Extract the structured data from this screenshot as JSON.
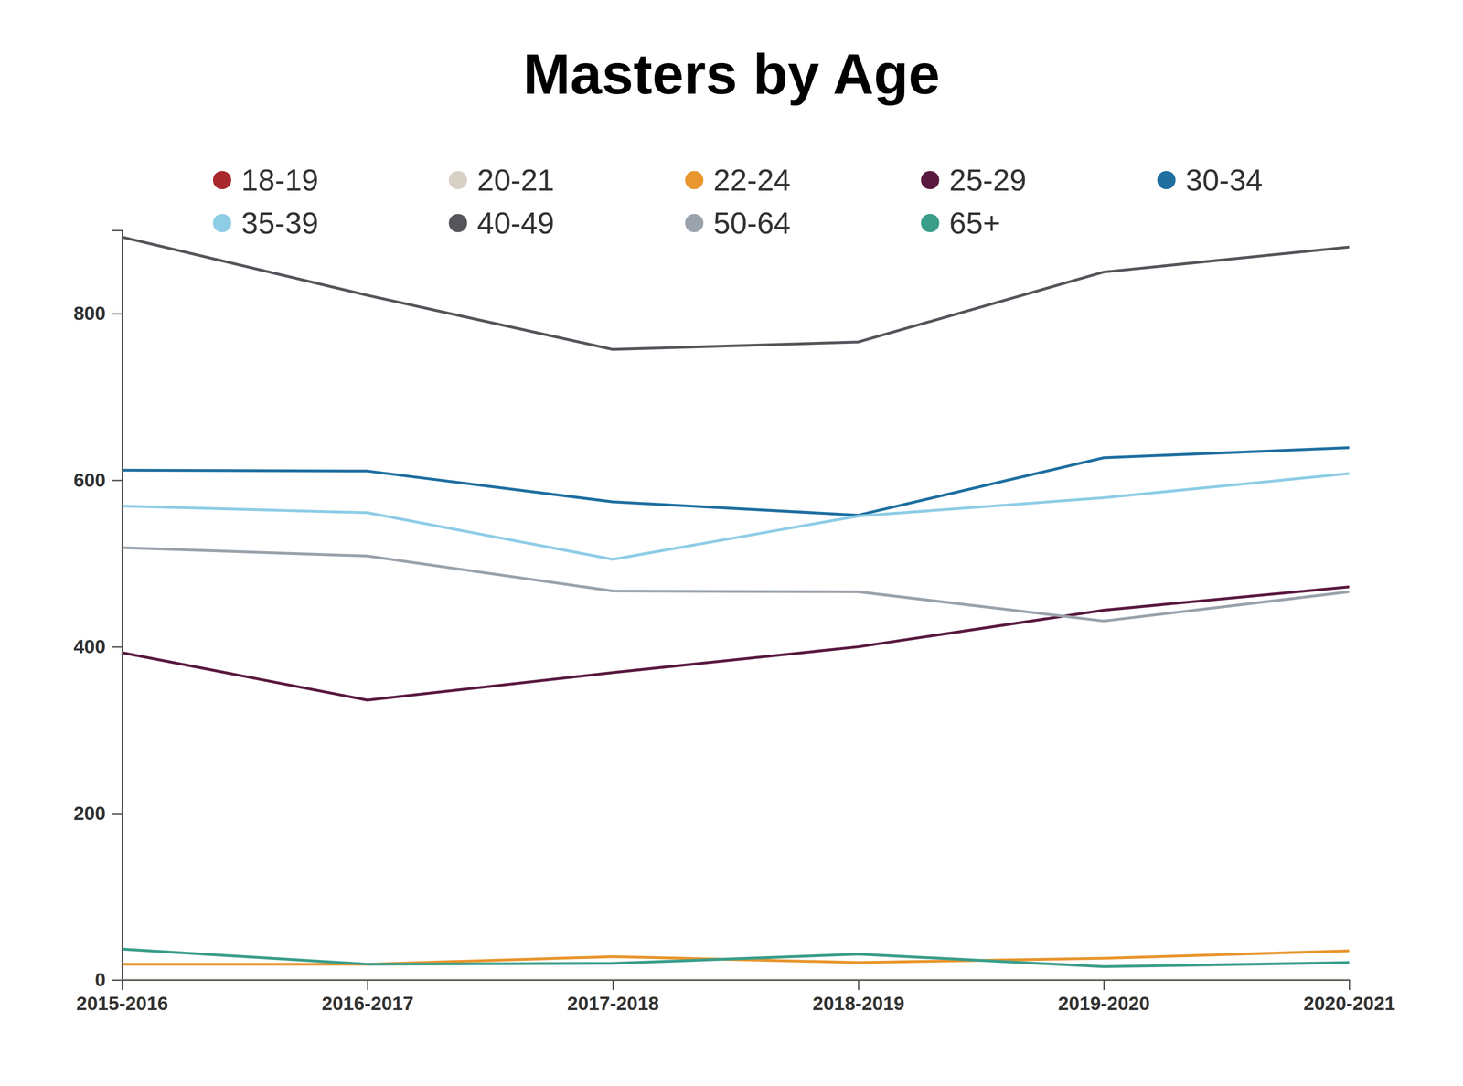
{
  "chart_data": {
    "type": "line",
    "title": "Masters by Age",
    "categories": [
      "2015-2016",
      "2016-2017",
      "2017-2018",
      "2018-2019",
      "2019-2020",
      "2020-2021"
    ],
    "series": [
      {
        "name": "18-19",
        "color": "#a8282c",
        "values": [
          0,
          0,
          0,
          0,
          0,
          0
        ]
      },
      {
        "name": "20-21",
        "color": "#d6d1c4",
        "values": [
          0,
          0,
          0,
          0,
          0,
          0
        ]
      },
      {
        "name": "22-24",
        "color": "#e8962e",
        "values": [
          19,
          19,
          28,
          21,
          26,
          35
        ]
      },
      {
        "name": "25-29",
        "color": "#5a1a40",
        "values": [
          393,
          336,
          369,
          400,
          444,
          472
        ]
      },
      {
        "name": "30-34",
        "color": "#1f6fa0",
        "values": [
          612,
          611,
          574,
          558,
          627,
          639
        ]
      },
      {
        "name": "35-39",
        "color": "#8ecde6",
        "values": [
          569,
          561,
          505,
          557,
          579,
          608
        ]
      },
      {
        "name": "40-49",
        "color": "#55565b",
        "values": [
          892,
          822,
          757,
          766,
          850,
          880
        ]
      },
      {
        "name": "50-64",
        "color": "#9aa2ab",
        "values": [
          519,
          509,
          467,
          466,
          431,
          466
        ]
      },
      {
        "name": "65+",
        "color": "#3a9e8a",
        "values": [
          37,
          19,
          20,
          31,
          16,
          21
        ]
      }
    ],
    "ylim": [
      0,
      900
    ],
    "yticks": [
      0,
      200,
      400,
      600,
      800
    ],
    "grid": false,
    "legend": "top"
  }
}
